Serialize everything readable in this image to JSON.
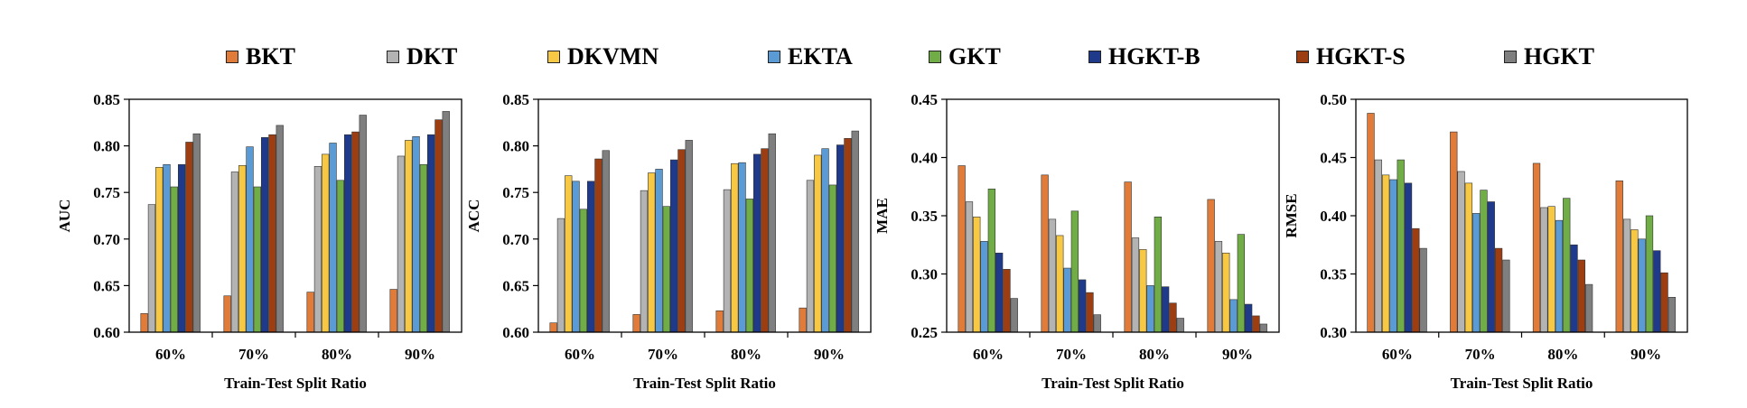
{
  "colors": {
    "BKT": "#e07b39",
    "DKT": "#b3b3b3",
    "DKVMN": "#f7c844",
    "EKTA": "#5b9bd5",
    "GKT": "#70ad47",
    "HGKT-B": "#1f3a8a",
    "HGKT-S": "#9c3d12",
    "HGKT": "#7f7f7f"
  },
  "legend": [
    "BKT",
    "DKT",
    "DKVMN",
    "EKTA",
    "GKT",
    "HGKT-B",
    "HGKT-S",
    "HGKT"
  ],
  "chart_data": [
    {
      "type": "bar",
      "categories": [
        "60%",
        "70%",
        "80%",
        "90%"
      ],
      "xlabel": "Train-Test Split Ratio",
      "ylabel": "AUC",
      "ylim": [
        0.6,
        0.85
      ],
      "yticks": [
        "0.60",
        "0.65",
        "0.70",
        "0.75",
        "0.80",
        "0.85"
      ],
      "series": [
        {
          "name": "BKT",
          "values": [
            0.62,
            0.639,
            0.643,
            0.646
          ]
        },
        {
          "name": "DKT",
          "values": [
            0.737,
            0.772,
            0.778,
            0.789
          ]
        },
        {
          "name": "DKVMN",
          "values": [
            0.777,
            0.779,
            0.791,
            0.806
          ]
        },
        {
          "name": "EKTA",
          "values": [
            0.78,
            0.799,
            0.803,
            0.81
          ]
        },
        {
          "name": "GKT",
          "values": [
            0.756,
            0.756,
            0.763,
            0.78
          ]
        },
        {
          "name": "HGKT-B",
          "values": [
            0.78,
            0.809,
            0.812,
            0.812
          ]
        },
        {
          "name": "HGKT-S",
          "values": [
            0.804,
            0.812,
            0.815,
            0.828
          ]
        },
        {
          "name": "HGKT",
          "values": [
            0.813,
            0.822,
            0.833,
            0.837
          ]
        }
      ]
    },
    {
      "type": "bar",
      "categories": [
        "60%",
        "70%",
        "80%",
        "90%"
      ],
      "xlabel": "Train-Test Split Ratio",
      "ylabel": "ACC",
      "ylim": [
        0.6,
        0.85
      ],
      "yticks": [
        "0.60",
        "0.65",
        "0.70",
        "0.75",
        "0.80",
        "0.85"
      ],
      "series": [
        {
          "name": "BKT",
          "values": [
            0.61,
            0.619,
            0.623,
            0.626
          ]
        },
        {
          "name": "DKT",
          "values": [
            0.722,
            0.752,
            0.753,
            0.763
          ]
        },
        {
          "name": "DKVMN",
          "values": [
            0.768,
            0.771,
            0.781,
            0.79
          ]
        },
        {
          "name": "EKTA",
          "values": [
            0.762,
            0.775,
            0.782,
            0.797
          ]
        },
        {
          "name": "GKT",
          "values": [
            0.732,
            0.735,
            0.743,
            0.758
          ]
        },
        {
          "name": "HGKT-B",
          "values": [
            0.762,
            0.785,
            0.791,
            0.801
          ]
        },
        {
          "name": "HGKT-S",
          "values": [
            0.786,
            0.796,
            0.797,
            0.808
          ]
        },
        {
          "name": "HGKT",
          "values": [
            0.795,
            0.806,
            0.813,
            0.816
          ]
        }
      ]
    },
    {
      "type": "bar",
      "categories": [
        "60%",
        "70%",
        "80%",
        "90%"
      ],
      "xlabel": "Train-Test Split Ratio",
      "ylabel": "MAE",
      "ylim": [
        0.25,
        0.45
      ],
      "yticks": [
        "0.25",
        "0.30",
        "0.35",
        "0.40",
        "0.45"
      ],
      "series": [
        {
          "name": "BKT",
          "values": [
            0.393,
            0.385,
            0.379,
            0.364
          ]
        },
        {
          "name": "DKT",
          "values": [
            0.362,
            0.347,
            0.331,
            0.328
          ]
        },
        {
          "name": "DKVMN",
          "values": [
            0.349,
            0.333,
            0.321,
            0.318
          ]
        },
        {
          "name": "EKTA",
          "values": [
            0.328,
            0.305,
            0.29,
            0.278
          ]
        },
        {
          "name": "GKT",
          "values": [
            0.373,
            0.354,
            0.349,
            0.334
          ]
        },
        {
          "name": "HGKT-B",
          "values": [
            0.318,
            0.295,
            0.289,
            0.274
          ]
        },
        {
          "name": "HGKT-S",
          "values": [
            0.304,
            0.284,
            0.275,
            0.264
          ]
        },
        {
          "name": "HGKT",
          "values": [
            0.279,
            0.265,
            0.262,
            0.257
          ]
        }
      ]
    },
    {
      "type": "bar",
      "categories": [
        "60%",
        "70%",
        "80%",
        "90%"
      ],
      "xlabel": "Train-Test Split Ratio",
      "ylabel": "RMSE",
      "ylim": [
        0.3,
        0.5
      ],
      "yticks": [
        "0.30",
        "0.35",
        "0.40",
        "0.45",
        "0.50"
      ],
      "series": [
        {
          "name": "BKT",
          "values": [
            0.488,
            0.472,
            0.445,
            0.43
          ]
        },
        {
          "name": "DKT",
          "values": [
            0.448,
            0.438,
            0.407,
            0.397
          ]
        },
        {
          "name": "DKVMN",
          "values": [
            0.435,
            0.428,
            0.408,
            0.388
          ]
        },
        {
          "name": "EKTA",
          "values": [
            0.431,
            0.402,
            0.396,
            0.38
          ]
        },
        {
          "name": "GKT",
          "values": [
            0.448,
            0.422,
            0.415,
            0.4
          ]
        },
        {
          "name": "HGKT-B",
          "values": [
            0.428,
            0.412,
            0.375,
            0.37
          ]
        },
        {
          "name": "HGKT-S",
          "values": [
            0.389,
            0.372,
            0.362,
            0.351
          ]
        },
        {
          "name": "HGKT",
          "values": [
            0.372,
            0.362,
            0.341,
            0.33
          ]
        }
      ]
    }
  ]
}
